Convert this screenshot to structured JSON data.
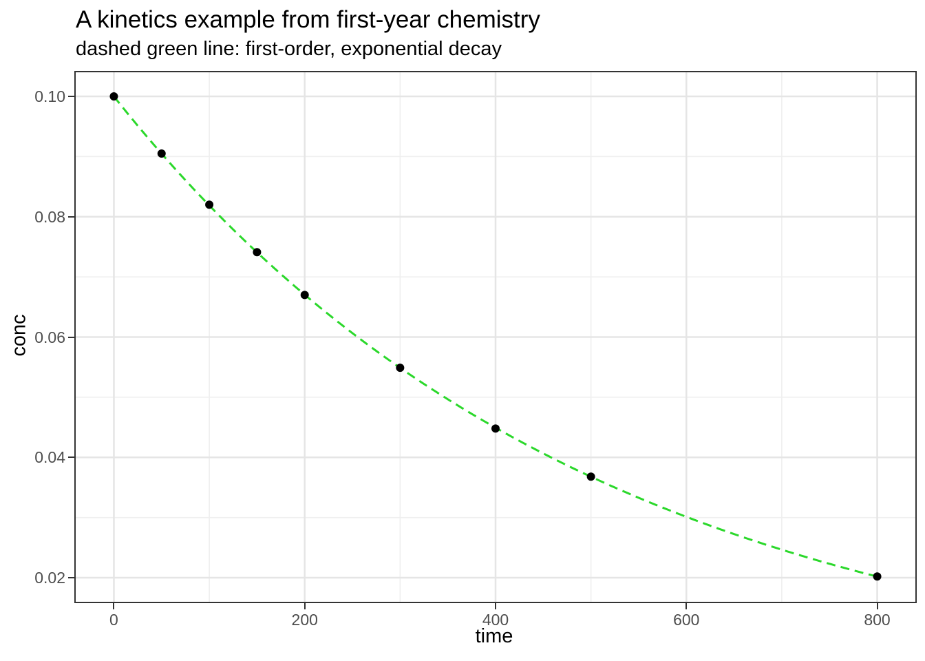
{
  "chart_data": {
    "type": "scatter",
    "title": "A kinetics example from first-year chemistry",
    "subtitle": "dashed green line: first-order, exponential decay",
    "xlabel": "time",
    "ylabel": "conc",
    "points": {
      "time": [
        0,
        50,
        100,
        150,
        200,
        300,
        400,
        500,
        800
      ],
      "conc": [
        0.1,
        0.0905,
        0.082,
        0.0741,
        0.067,
        0.0549,
        0.0448,
        0.0368,
        0.0202
      ]
    },
    "curve": {
      "kind": "first-order exponential decay",
      "formula": "conc = 0.1 * exp(-0.002 * time)",
      "a": 0.1,
      "k": 0.002,
      "t_range": [
        0,
        800
      ],
      "line_style": "dashed",
      "color": "#2bd82b",
      "width": 3,
      "dash": "13 8"
    },
    "xlim": [
      -40,
      840
    ],
    "ylim": [
      0.016,
      0.104
    ],
    "x_ticks": {
      "values": [
        0,
        200,
        400,
        600,
        800
      ],
      "labels": [
        "0",
        "200",
        "400",
        "600",
        "800"
      ]
    },
    "y_ticks": {
      "values": [
        0.02,
        0.04,
        0.06,
        0.08,
        0.1
      ],
      "labels": [
        "0.02",
        "0.04",
        "0.06",
        "0.08",
        "0.10"
      ]
    },
    "x_minor": [
      100,
      300,
      500,
      700
    ],
    "y_minor": [
      0.03,
      0.05,
      0.07,
      0.09
    ],
    "grid": "major+minor",
    "legend_position": "none",
    "point": {
      "color": "#000000",
      "radius": 6
    },
    "colors": {
      "major_grid": "#e5e5e5",
      "minor_grid": "#efefef",
      "panel_border": "#333333",
      "tick_mark": "#333333",
      "tick_label": "#4d4d4d",
      "text": "#000000",
      "background": "#ffffff"
    }
  }
}
